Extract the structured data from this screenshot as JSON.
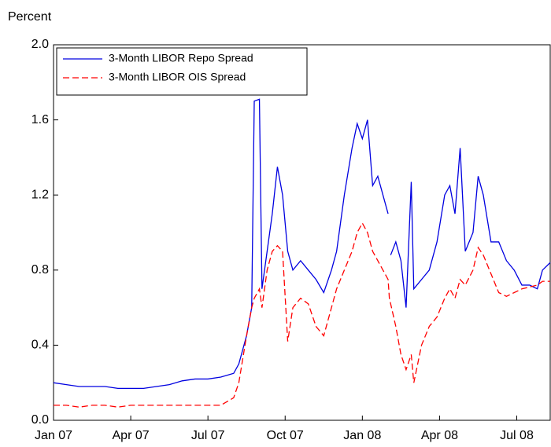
{
  "chart_data": {
    "type": "line",
    "y_axis_label": "Percent",
    "x": [
      0,
      0.5,
      1,
      1.5,
      2,
      2.5,
      3,
      3.5,
      4,
      4.5,
      5,
      5.5,
      6,
      6.5,
      7,
      7.2,
      7.5,
      7.7,
      7.8,
      8.0,
      8.1,
      8.3,
      8.5,
      8.7,
      8.9,
      9.1,
      9.3,
      9.6,
      9.9,
      10.2,
      10.5,
      10.8,
      11.0,
      11.3,
      11.6,
      11.8,
      12.0,
      12.2,
      12.4,
      12.6,
      12.8,
      13.0,
      13.05,
      13.1,
      13.3,
      13.5,
      13.7,
      13.9,
      14.0,
      14.3,
      14.6,
      14.9,
      15.2,
      15.4,
      15.6,
      15.8,
      16.0,
      16.3,
      16.5,
      16.7,
      17.0,
      17.3,
      17.6,
      17.9,
      18.2,
      18.5,
      18.8,
      19.0,
      19.3
    ],
    "series": [
      {
        "name": "3-Month LIBOR Repo Spread",
        "color": "#0000e0",
        "style": "solid",
        "values": [
          0.2,
          0.19,
          0.18,
          0.18,
          0.18,
          0.17,
          0.17,
          0.17,
          0.18,
          0.19,
          0.21,
          0.22,
          0.22,
          0.23,
          0.25,
          0.3,
          0.45,
          0.6,
          1.7,
          1.71,
          0.7,
          0.9,
          1.1,
          1.35,
          1.2,
          0.9,
          0.8,
          0.85,
          0.8,
          0.75,
          0.68,
          0.8,
          0.9,
          1.2,
          1.45,
          1.58,
          1.5,
          1.6,
          1.25,
          1.3,
          1.2,
          1.1,
          null,
          0.88,
          0.95,
          0.85,
          0.6,
          1.27,
          0.7,
          0.75,
          0.8,
          0.95,
          1.2,
          1.25,
          1.1,
          1.45,
          0.9,
          1.0,
          1.3,
          1.2,
          0.95,
          0.95,
          0.85,
          0.8,
          0.72,
          0.72,
          0.7,
          0.8,
          0.84
        ]
      },
      {
        "name": "3-Month LIBOR OIS Spread",
        "color": "#ff0000",
        "style": "dashed",
        "values": [
          0.08,
          0.08,
          0.07,
          0.08,
          0.08,
          0.07,
          0.08,
          0.08,
          0.08,
          0.08,
          0.08,
          0.08,
          0.08,
          0.08,
          0.12,
          0.2,
          0.45,
          0.6,
          0.65,
          0.7,
          0.6,
          0.8,
          0.9,
          0.93,
          0.9,
          0.42,
          0.6,
          0.65,
          0.62,
          0.5,
          0.45,
          0.6,
          0.7,
          0.8,
          0.9,
          1.0,
          1.05,
          1.0,
          0.9,
          0.85,
          0.8,
          0.75,
          0.65,
          0.62,
          0.5,
          0.35,
          0.27,
          0.35,
          0.2,
          0.4,
          0.5,
          0.55,
          0.65,
          0.7,
          0.65,
          0.75,
          0.72,
          0.8,
          0.92,
          0.88,
          0.78,
          0.68,
          0.66,
          0.68,
          0.7,
          0.71,
          0.72,
          0.74,
          0.74
        ]
      }
    ],
    "xlim": [
      0,
      19.3
    ],
    "xticks": [
      {
        "value": 0,
        "label": "Jan 07"
      },
      {
        "value": 3,
        "label": "Apr 07"
      },
      {
        "value": 6,
        "label": "Jul 07"
      },
      {
        "value": 9,
        "label": "Oct 07"
      },
      {
        "value": 12,
        "label": "Jan 08"
      },
      {
        "value": 15,
        "label": "Apr 08"
      },
      {
        "value": 18,
        "label": "Jul 08"
      }
    ],
    "ylim": [
      0,
      2
    ],
    "yticks": [
      {
        "value": 0,
        "label": "0.0"
      },
      0.4,
      0.8,
      1.2,
      1.6,
      {
        "value": 2,
        "label": "2.0"
      }
    ],
    "legend": "upper left"
  }
}
